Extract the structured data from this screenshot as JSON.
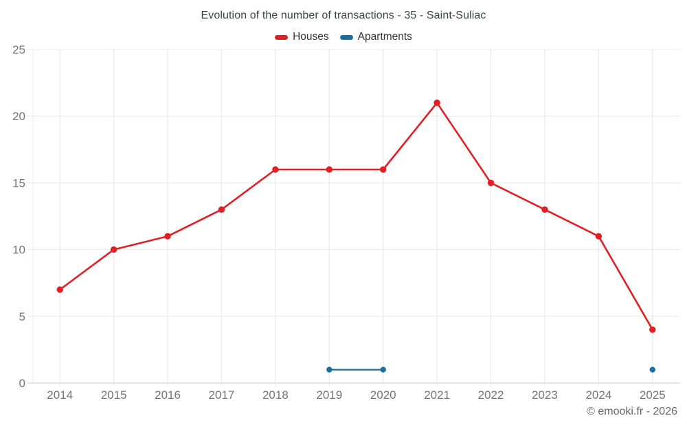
{
  "title": "Evolution of the number of transactions - 35 - Saint-Suliac",
  "legend": {
    "houses": {
      "label": "Houses",
      "color": "#e02025"
    },
    "apartments": {
      "label": "Apartments",
      "color": "#196fa0"
    }
  },
  "attribution": "© emooki.fr - 2026",
  "colors": {
    "houses": "#e02025",
    "apartments": "#196fa0",
    "grid": "#e8e8e8",
    "axis": "#c9c9c9",
    "tick_label": "#757575",
    "title_text": "#3d4043"
  },
  "chart_data": {
    "type": "line",
    "title": "Evolution of the number of transactions - 35 - Saint-Suliac",
    "categories": [
      "2014",
      "2015",
      "2016",
      "2017",
      "2018",
      "2019",
      "2020",
      "2021",
      "2022",
      "2023",
      "2024",
      "2025"
    ],
    "series": [
      {
        "name": "Houses",
        "color": "#e02025",
        "values": [
          7,
          10,
          11,
          13,
          16,
          16,
          16,
          21,
          15,
          13,
          11,
          4
        ]
      },
      {
        "name": "Apartments",
        "color": "#196fa0",
        "values": [
          null,
          null,
          null,
          null,
          null,
          1,
          1,
          null,
          null,
          null,
          null,
          1
        ]
      }
    ],
    "xlabel": "",
    "ylabel": "",
    "ylim": [
      0,
      25
    ],
    "ytick_step": 5,
    "yticks": [
      0,
      5,
      10,
      15,
      20,
      25
    ],
    "grid": true,
    "legend_position": "top"
  }
}
